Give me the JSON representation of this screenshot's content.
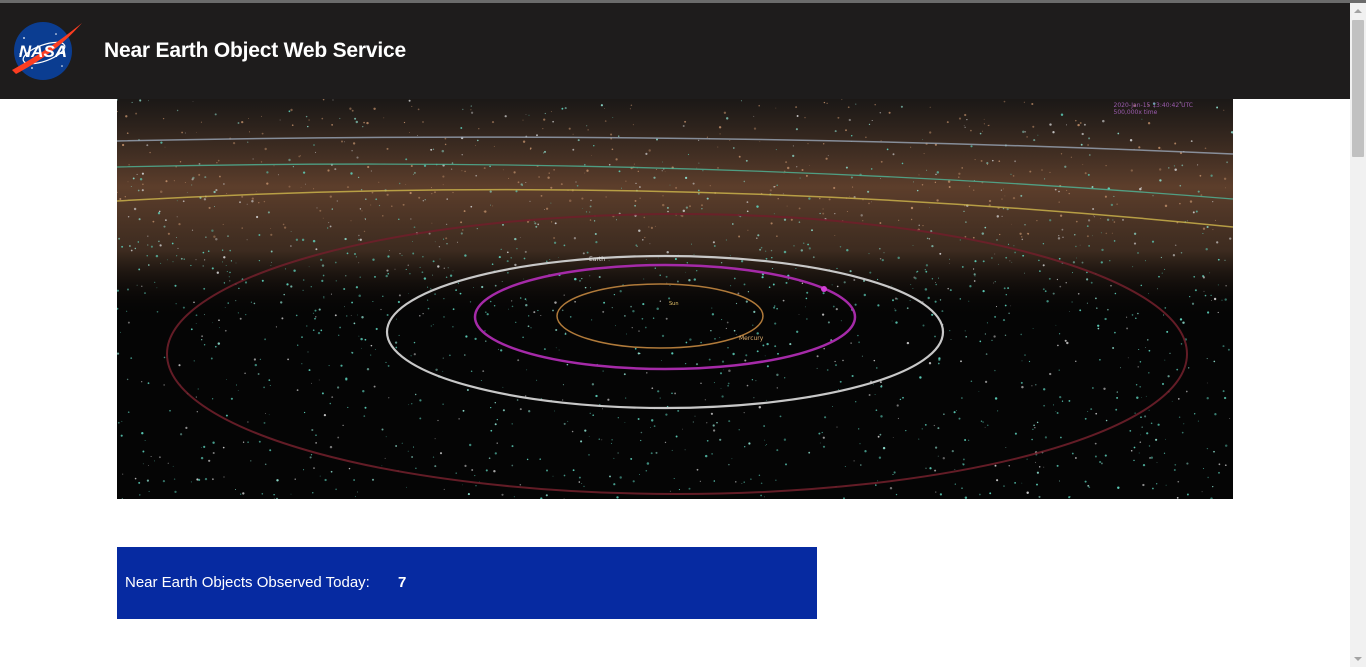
{
  "header": {
    "title": "Near Earth Object Web Service",
    "logo_text": "NASA",
    "logo_icon": "nasa-meatball-logo",
    "background_color": "#1e1c1c"
  },
  "hero": {
    "image_description_icon": "solar-system-asteroid-belt-image",
    "timestamp_text": "2020-Jan-15 13:40:42 UTC",
    "speed_text": "500,000x time",
    "labels": {
      "sun": "Sun",
      "mercury": "Mercury",
      "earth": "Earth"
    }
  },
  "neo_panel": {
    "label": "Near Earth Objects Observed Today:",
    "count": "7",
    "background_color": "#062aa1"
  },
  "scrollbar": {
    "up_icon": "scroll-up-arrow-icon",
    "down_icon": "scroll-down-arrow-icon"
  }
}
